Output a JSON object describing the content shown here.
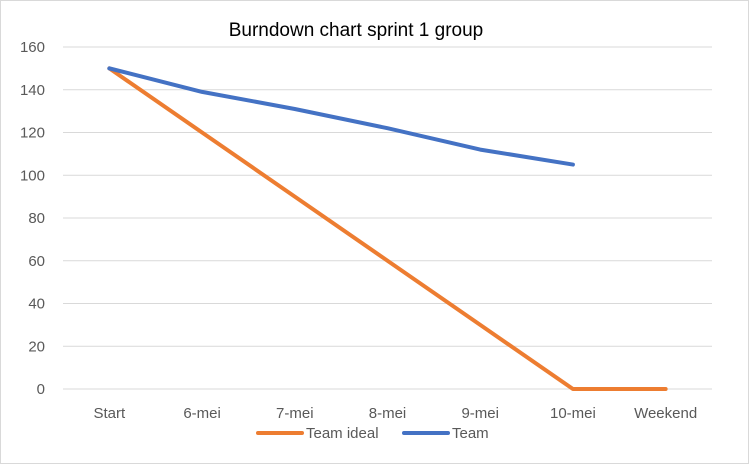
{
  "chart_data": {
    "type": "line",
    "title": "Burndown chart sprint 1 group",
    "xlabel": "",
    "ylabel": "",
    "categories": [
      "Start",
      "6-mei",
      "7-mei",
      "8-mei",
      "9-mei",
      "10-mei",
      "Weekend"
    ],
    "ylim": [
      0,
      160
    ],
    "yticks": [
      0,
      20,
      40,
      60,
      80,
      100,
      120,
      140,
      160
    ],
    "grid": true,
    "legend": "bottom",
    "series": [
      {
        "name": "Team ideal",
        "color": "#ED7D31",
        "values": [
          150,
          120,
          90,
          60,
          30,
          0,
          0
        ]
      },
      {
        "name": "Team",
        "color": "#4472C4",
        "values": [
          150,
          139,
          131,
          122,
          112,
          105,
          null
        ]
      }
    ]
  }
}
